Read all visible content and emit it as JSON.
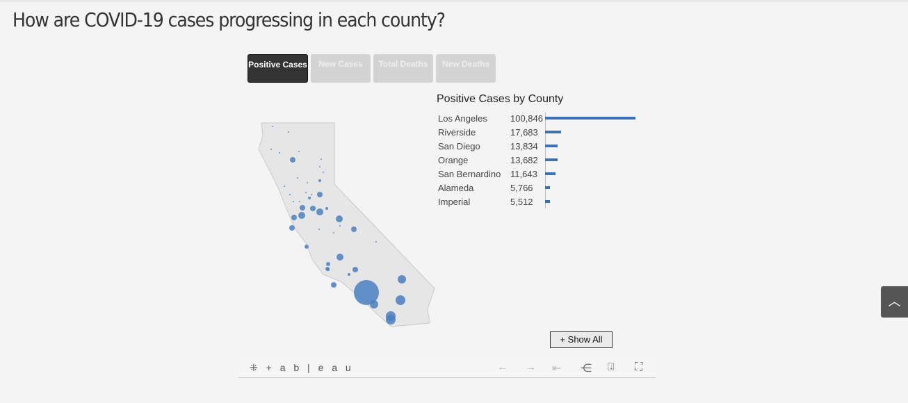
{
  "page": {
    "title": "How are COVID-19 cases progressing in each county?"
  },
  "tabs": [
    {
      "label": "Positive Cases",
      "active": true
    },
    {
      "label": "New Cases",
      "active": false
    },
    {
      "label": "Total Deaths",
      "active": false
    },
    {
      "label": "New Deaths",
      "active": false
    }
  ],
  "chart": {
    "title": "Positive Cases by County",
    "bar_color": "#3a72b5",
    "rows": [
      {
        "county": "Los Angeles",
        "value": 100846,
        "label": "100,846"
      },
      {
        "county": "Riverside",
        "value": 17683,
        "label": "17,683"
      },
      {
        "county": "San Diego",
        "value": 13834,
        "label": "13,834"
      },
      {
        "county": "Orange",
        "value": 13682,
        "label": "13,682"
      },
      {
        "county": "San Bernardino",
        "value": 11643,
        "label": "11,643"
      },
      {
        "county": "Alameda",
        "value": 5766,
        "label": "5,766"
      },
      {
        "county": "Imperial",
        "value": 5512,
        "label": "5,512"
      }
    ]
  },
  "show_all": "+ Show All",
  "footer": {
    "logo": "+ a b | e a u"
  }
}
